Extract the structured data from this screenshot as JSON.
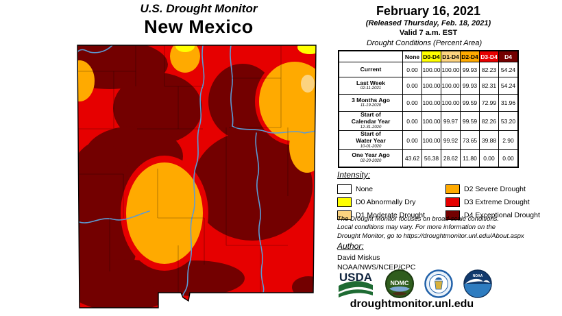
{
  "title": {
    "kicker": "U.S. Drought Monitor",
    "state": "New Mexico"
  },
  "header": {
    "date": "February 16, 2021",
    "released": "(Released Thursday, Feb. 18, 2021)",
    "valid": "Valid 7 a.m. EST"
  },
  "table": {
    "caption": "Drought Conditions (Percent Area)",
    "columns": [
      {
        "label": "None",
        "bg": "#FFFFFF",
        "fg": "#000000"
      },
      {
        "label": "D0-D4",
        "bg": "#FFFF00",
        "fg": "#000000"
      },
      {
        "label": "D1-D4",
        "bg": "#FCD37F",
        "fg": "#000000"
      },
      {
        "label": "D2-D4",
        "bg": "#FFAA00",
        "fg": "#000000"
      },
      {
        "label": "D3-D4",
        "bg": "#E60000",
        "fg": "#FFFFFF"
      },
      {
        "label": "D4",
        "bg": "#730000",
        "fg": "#FFFFFF"
      }
    ],
    "rows": [
      {
        "label": "Current",
        "date": "",
        "values": [
          "0.00",
          "100.00",
          "100.00",
          "99.93",
          "82.23",
          "54.24"
        ]
      },
      {
        "label": "Last Week",
        "date": "02-11-2021",
        "values": [
          "0.00",
          "100.00",
          "100.00",
          "99.93",
          "82.31",
          "54.24"
        ]
      },
      {
        "label": "3 Months Ago",
        "date": "11-19-2020",
        "values": [
          "0.00",
          "100.00",
          "100.00",
          "99.59",
          "72.99",
          "31.96"
        ]
      },
      {
        "label": "Start of\nCalendar Year",
        "date": "12-31-2020",
        "values": [
          "0.00",
          "100.00",
          "99.97",
          "99.59",
          "82.26",
          "53.20"
        ]
      },
      {
        "label": "Start of\nWater Year",
        "date": "10-01-2020",
        "values": [
          "0.00",
          "100.00",
          "99.92",
          "73.65",
          "39.88",
          "2.90"
        ]
      },
      {
        "label": "One Year Ago",
        "date": "02-20-2020",
        "values": [
          "43.62",
          "56.38",
          "28.62",
          "11.80",
          "0.00",
          "0.00"
        ]
      }
    ]
  },
  "intensity": {
    "title": "Intensity:",
    "items": [
      {
        "label": "None",
        "color": "#FFFFFF"
      },
      {
        "label": "D0 Abnormally Dry",
        "color": "#FFFF00"
      },
      {
        "label": "D1 Moderate Drought",
        "color": "#FCD37F"
      },
      {
        "label": "D2 Severe Drought",
        "color": "#FFAA00"
      },
      {
        "label": "D3 Extreme Drought",
        "color": "#E60000"
      },
      {
        "label": "D4 Exceptional Drought",
        "color": "#730000"
      }
    ]
  },
  "disclaimer": "The Drought Monitor focuses on broad-scale conditions.\nLocal conditions may vary. For more information on the\nDrought Monitor, go to https://droughtmonitor.unl.edu/About.aspx",
  "author": {
    "title": "Author:",
    "name": "David Miskus",
    "org": "NOAA/NWS/NCEP/CPC"
  },
  "logos": {
    "usda": "USDA",
    "ndmc": "NDMC",
    "noaa": "NOAA"
  },
  "footer": {
    "url": "droughtmonitor.unl.edu"
  },
  "map": {
    "label": "New Mexico drought conditions map",
    "colors": {
      "none": "#FFFFFF",
      "d0": "#FFFF00",
      "d1": "#FCD37F",
      "d2": "#FFAA00",
      "d3": "#E60000",
      "d4": "#730000",
      "river": "#5B9BD5"
    }
  }
}
